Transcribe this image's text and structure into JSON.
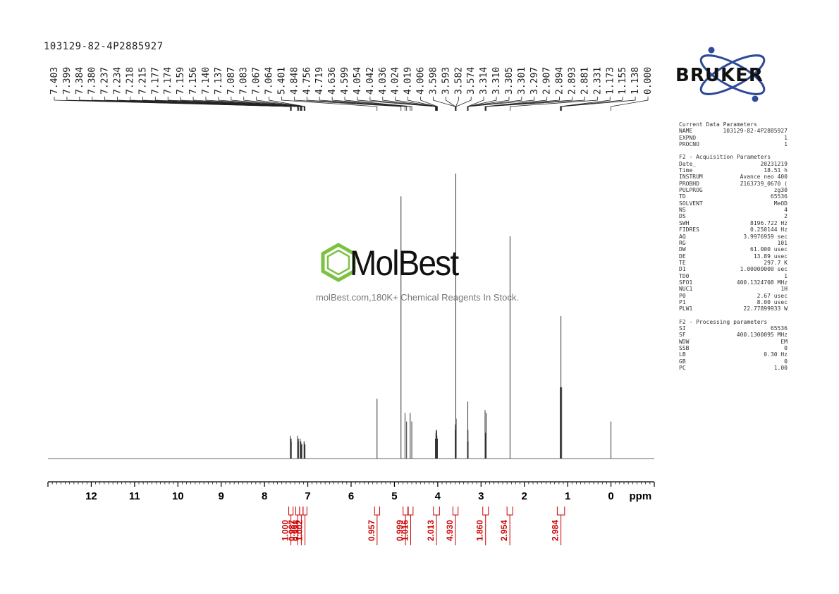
{
  "sample_id": "103129-82-4P2885927",
  "logo": {
    "text": "BRUKER"
  },
  "watermark": {
    "brand": "MolBest",
    "tagline": "molBest.com,180K+ Chemical Reagents In Stock."
  },
  "parameters": {
    "current_title": "Current Data Parameters",
    "current": [
      {
        "k": "NAME",
        "v": "103129-82-4P2885927"
      },
      {
        "k": "EXPNO",
        "v": "1"
      },
      {
        "k": "PROCNO",
        "v": "1"
      }
    ],
    "acq_title": "F2 - Acquisition Parameters",
    "acquisition": [
      {
        "k": "Date_",
        "v": "20231219"
      },
      {
        "k": "Time",
        "v": "18.51 h"
      },
      {
        "k": "INSTRUM",
        "v": "Avance neo 400"
      },
      {
        "k": "PROBHD",
        "v": "Z163739_0670 ("
      },
      {
        "k": "PULPROG",
        "v": "zg30"
      },
      {
        "k": "TD",
        "v": "65536"
      },
      {
        "k": "SOLVENT",
        "v": "MeOD"
      },
      {
        "k": "NS",
        "v": "4"
      },
      {
        "k": "DS",
        "v": "2"
      },
      {
        "k": "SWH",
        "v": "8196.722 Hz"
      },
      {
        "k": "FIDRES",
        "v": "0.250144 Hz"
      },
      {
        "k": "AQ",
        "v": "3.9976959 sec"
      },
      {
        "k": "RG",
        "v": "101"
      },
      {
        "k": "DW",
        "v": "61.000 usec"
      },
      {
        "k": "DE",
        "v": "13.89 usec"
      },
      {
        "k": "TE",
        "v": "297.7 K"
      },
      {
        "k": "D1",
        "v": "1.00000000 sec"
      },
      {
        "k": "TD0",
        "v": "1"
      },
      {
        "k": "SFO1",
        "v": "400.1324708 MHz"
      },
      {
        "k": "NUC1",
        "v": "1H"
      },
      {
        "k": "P0",
        "v": "2.67 usec"
      },
      {
        "k": "P1",
        "v": "8.00 usec"
      },
      {
        "k": "PLW1",
        "v": "22.77899933 W"
      }
    ],
    "proc_title": "F2 - Processing parameters",
    "processing": [
      {
        "k": "SI",
        "v": "65536"
      },
      {
        "k": "SF",
        "v": "400.1300095 MHz"
      },
      {
        "k": "WDW",
        "v": "EM"
      },
      {
        "k": "SSB",
        "v": "0"
      },
      {
        "k": "LB",
        "v": "0.30 Hz"
      },
      {
        "k": "GB",
        "v": "0"
      },
      {
        "k": "PC",
        "v": "1.00"
      }
    ]
  },
  "chart_data": {
    "type": "line",
    "title": "",
    "xlabel": "ppm",
    "ylabel": "",
    "xlim": [
      13.0,
      -1.0
    ],
    "x_reversed": true,
    "xticks": [
      12,
      11,
      10,
      9,
      8,
      7,
      6,
      5,
      4,
      3,
      2,
      1,
      0
    ],
    "peak_labels": [
      "7.403",
      "7.399",
      "7.384",
      "7.380",
      "7.237",
      "7.234",
      "7.218",
      "7.215",
      "7.177",
      "7.174",
      "7.159",
      "7.156",
      "7.140",
      "7.137",
      "7.087",
      "7.083",
      "7.067",
      "7.064",
      "5.401",
      "4.848",
      "4.756",
      "4.719",
      "4.636",
      "4.599",
      "4.054",
      "4.042",
      "4.036",
      "4.024",
      "4.019",
      "4.006",
      "3.598",
      "3.593",
      "3.582",
      "3.574",
      "3.314",
      "3.310",
      "3.305",
      "3.301",
      "3.297",
      "2.907",
      "2.894",
      "2.893",
      "2.881",
      "2.331",
      "1.173",
      "1.155",
      "1.138",
      "0.000"
    ],
    "peaks": [
      {
        "ppm": 7.403,
        "h": 0.08
      },
      {
        "ppm": 7.399,
        "h": 0.07
      },
      {
        "ppm": 7.384,
        "h": 0.07
      },
      {
        "ppm": 7.38,
        "h": 0.06
      },
      {
        "ppm": 7.237,
        "h": 0.08
      },
      {
        "ppm": 7.234,
        "h": 0.07
      },
      {
        "ppm": 7.218,
        "h": 0.07
      },
      {
        "ppm": 7.215,
        "h": 0.06
      },
      {
        "ppm": 7.177,
        "h": 0.07
      },
      {
        "ppm": 7.174,
        "h": 0.06
      },
      {
        "ppm": 7.159,
        "h": 0.06
      },
      {
        "ppm": 7.156,
        "h": 0.05
      },
      {
        "ppm": 7.14,
        "h": 0.05
      },
      {
        "ppm": 7.137,
        "h": 0.05
      },
      {
        "ppm": 7.087,
        "h": 0.06
      },
      {
        "ppm": 7.083,
        "h": 0.06
      },
      {
        "ppm": 7.067,
        "h": 0.05
      },
      {
        "ppm": 7.064,
        "h": 0.05
      },
      {
        "ppm": 5.401,
        "h": 0.21
      },
      {
        "ppm": 4.848,
        "h": 0.92
      },
      {
        "ppm": 4.756,
        "h": 0.16
      },
      {
        "ppm": 4.719,
        "h": 0.13
      },
      {
        "ppm": 4.636,
        "h": 0.16
      },
      {
        "ppm": 4.599,
        "h": 0.13
      },
      {
        "ppm": 4.054,
        "h": 0.07
      },
      {
        "ppm": 4.042,
        "h": 0.09
      },
      {
        "ppm": 4.036,
        "h": 0.1
      },
      {
        "ppm": 4.024,
        "h": 0.1
      },
      {
        "ppm": 4.019,
        "h": 0.08
      },
      {
        "ppm": 4.006,
        "h": 0.07
      },
      {
        "ppm": 3.598,
        "h": 0.1
      },
      {
        "ppm": 3.593,
        "h": 0.12
      },
      {
        "ppm": 3.582,
        "h": 1.0
      },
      {
        "ppm": 3.574,
        "h": 0.14
      },
      {
        "ppm": 3.314,
        "h": 0.06
      },
      {
        "ppm": 3.31,
        "h": 0.1
      },
      {
        "ppm": 3.305,
        "h": 0.2
      },
      {
        "ppm": 3.301,
        "h": 0.1
      },
      {
        "ppm": 3.297,
        "h": 0.06
      },
      {
        "ppm": 2.907,
        "h": 0.17
      },
      {
        "ppm": 2.894,
        "h": 0.09
      },
      {
        "ppm": 2.893,
        "h": 0.09
      },
      {
        "ppm": 2.881,
        "h": 0.16
      },
      {
        "ppm": 2.331,
        "h": 0.78
      },
      {
        "ppm": 1.173,
        "h": 0.25
      },
      {
        "ppm": 1.155,
        "h": 0.5
      },
      {
        "ppm": 1.138,
        "h": 0.25
      },
      {
        "ppm": 0.0,
        "h": 0.13
      }
    ],
    "integrals": [
      {
        "from": 7.44,
        "to": 7.34,
        "value": "1.000"
      },
      {
        "from": 7.28,
        "to": 7.19,
        "value": "0.987"
      },
      {
        "from": 7.19,
        "to": 7.11,
        "value": "0.998"
      },
      {
        "from": 7.11,
        "to": 7.02,
        "value": "1.002"
      },
      {
        "from": 5.46,
        "to": 5.34,
        "value": "0.957"
      },
      {
        "from": 4.8,
        "to": 4.69,
        "value": "0.999"
      },
      {
        "from": 4.68,
        "to": 4.57,
        "value": "1.016"
      },
      {
        "from": 4.1,
        "to": 3.96,
        "value": "2.013"
      },
      {
        "from": 3.65,
        "to": 3.53,
        "value": "4.930"
      },
      {
        "from": 2.96,
        "to": 2.83,
        "value": "1.860"
      },
      {
        "from": 2.4,
        "to": 2.27,
        "value": "2.954"
      },
      {
        "from": 1.24,
        "to": 1.07,
        "value": "2.984"
      }
    ],
    "colors": {
      "spectrum": "#333333",
      "integral": "#cc0000",
      "axis": "#000000"
    }
  }
}
